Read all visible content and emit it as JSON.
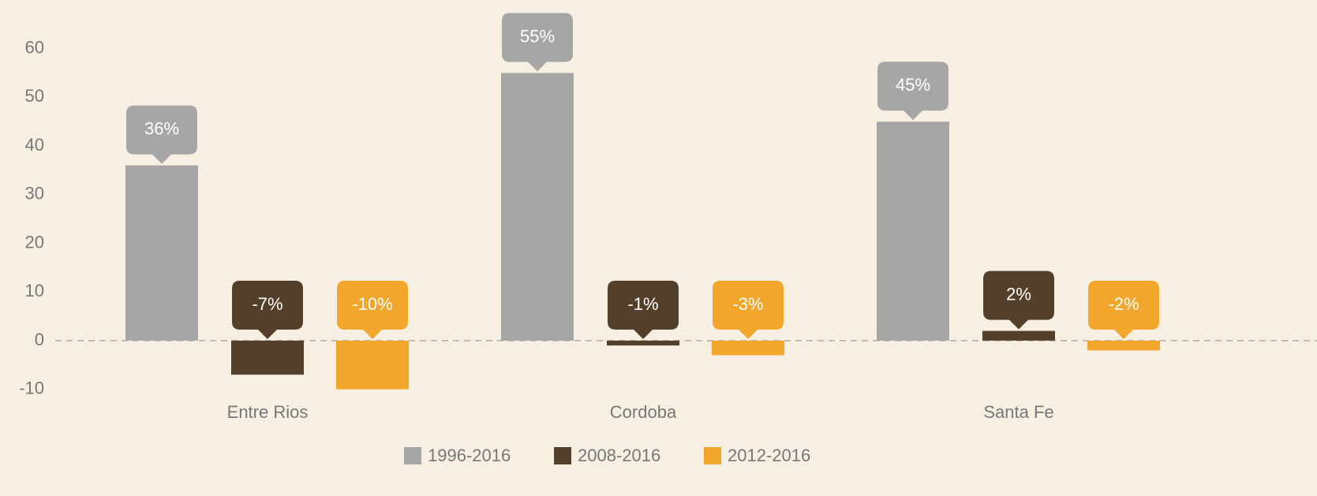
{
  "chart_data": {
    "type": "bar",
    "categories": [
      "Entre Rios",
      "Cordoba",
      "Santa Fe"
    ],
    "series": [
      {
        "name": "1996-2016",
        "color": "#a6a6a6",
        "values": [
          36,
          55,
          45
        ],
        "value_labels": [
          "36%",
          "55%",
          "45%"
        ]
      },
      {
        "name": "2008-2016",
        "color": "#54402a",
        "values": [
          -7,
          -1,
          2
        ],
        "value_labels": [
          "-7%",
          "-1%",
          "2%"
        ]
      },
      {
        "name": "2012-2016",
        "color": "#f2a62b",
        "values": [
          -10,
          -3,
          -2
        ],
        "value_labels": [
          "-10%",
          "-3%",
          "-2%"
        ]
      }
    ],
    "ylim": [
      -12,
      70
    ],
    "yticks": [
      -10,
      0,
      10,
      20,
      30,
      40,
      50,
      60
    ],
    "legend": "bottom"
  }
}
